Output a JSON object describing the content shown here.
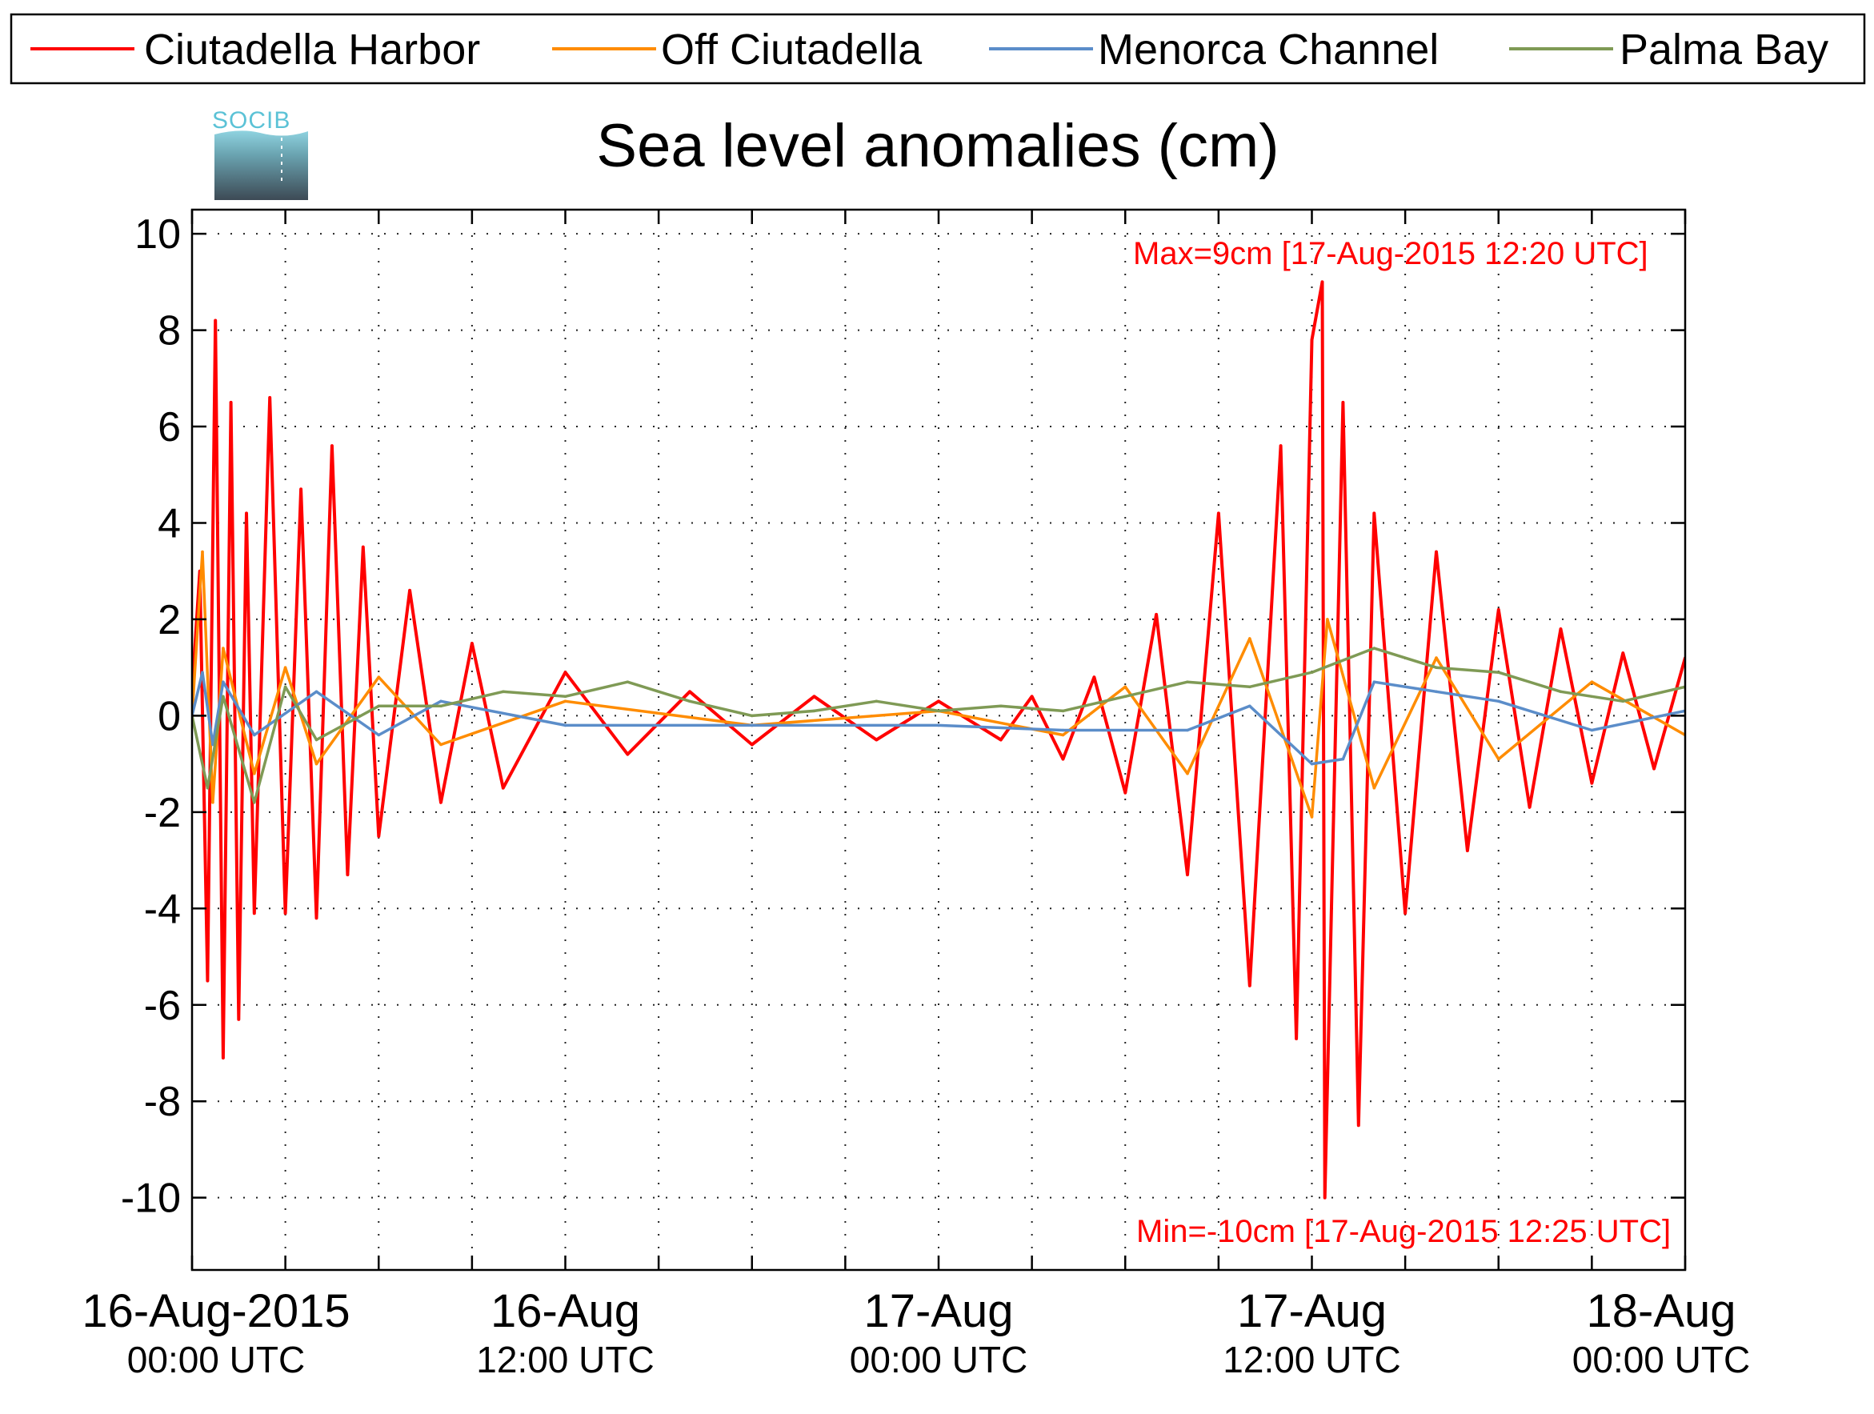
{
  "chart_data": {
    "type": "line",
    "title": "Sea level anomalies (cm)",
    "xlabel": "",
    "ylabel": "",
    "ylim": [
      -11.5,
      10.5
    ],
    "yticks": [
      -10,
      -8,
      -6,
      -4,
      -2,
      0,
      2,
      4,
      6,
      8,
      10
    ],
    "xlim": [
      "2015-08-16T00:00Z",
      "2015-08-18T00:00Z"
    ],
    "xticks": [
      {
        "line1": "16-Aug-2015",
        "line2": "00:00 UTC"
      },
      {
        "line1": "16-Aug",
        "line2": "12:00 UTC"
      },
      {
        "line1": "17-Aug",
        "line2": "00:00 UTC"
      },
      {
        "line1": "17-Aug",
        "line2": "12:00 UTC"
      },
      {
        "line1": "18-Aug",
        "line2": "00:00 UTC"
      }
    ],
    "grid": true,
    "legend_position": "top",
    "annotations": {
      "max": "Max=9cm [17-Aug-2015 12:20 UTC]",
      "min": "Min=-10cm [17-Aug-2015 12:25 UTC]"
    },
    "series": [
      {
        "name": "Ciutadella Harbor",
        "color": "#ff0000",
        "x": [
          "2015-08-16T00:00Z",
          "2015-08-16T00:15Z",
          "2015-08-16T00:30Z",
          "2015-08-16T00:45Z",
          "2015-08-16T01:00Z",
          "2015-08-16T01:15Z",
          "2015-08-16T01:30Z",
          "2015-08-16T01:45Z",
          "2015-08-16T02:00Z",
          "2015-08-16T02:30Z",
          "2015-08-16T03:00Z",
          "2015-08-16T03:30Z",
          "2015-08-16T04:00Z",
          "2015-08-16T04:30Z",
          "2015-08-16T05:00Z",
          "2015-08-16T05:30Z",
          "2015-08-16T06:00Z",
          "2015-08-16T07:00Z",
          "2015-08-16T08:00Z",
          "2015-08-16T09:00Z",
          "2015-08-16T10:00Z",
          "2015-08-16T12:00Z",
          "2015-08-16T14:00Z",
          "2015-08-16T16:00Z",
          "2015-08-16T18:00Z",
          "2015-08-16T20:00Z",
          "2015-08-16T22:00Z",
          "2015-08-17T00:00Z",
          "2015-08-17T02:00Z",
          "2015-08-17T03:00Z",
          "2015-08-17T04:00Z",
          "2015-08-17T05:00Z",
          "2015-08-17T06:00Z",
          "2015-08-17T07:00Z",
          "2015-08-17T08:00Z",
          "2015-08-17T09:00Z",
          "2015-08-17T10:00Z",
          "2015-08-17T11:00Z",
          "2015-08-17T11:30Z",
          "2015-08-17T12:00Z",
          "2015-08-17T12:20Z",
          "2015-08-17T12:25Z",
          "2015-08-17T13:00Z",
          "2015-08-17T13:30Z",
          "2015-08-17T14:00Z",
          "2015-08-17T15:00Z",
          "2015-08-17T16:00Z",
          "2015-08-17T17:00Z",
          "2015-08-17T18:00Z",
          "2015-08-17T19:00Z",
          "2015-08-17T20:00Z",
          "2015-08-17T21:00Z",
          "2015-08-17T22:00Z",
          "2015-08-17T23:00Z",
          "2015-08-18T00:00Z"
        ],
        "values": [
          0.5,
          3.0,
          -5.5,
          8.2,
          -7.1,
          6.5,
          -6.3,
          4.2,
          -4.1,
          6.6,
          -4.1,
          4.7,
          -4.2,
          5.6,
          -3.3,
          3.5,
          -2.5,
          2.6,
          -1.8,
          1.5,
          -1.5,
          0.9,
          -0.8,
          0.5,
          -0.6,
          0.4,
          -0.5,
          0.3,
          -0.5,
          0.4,
          -0.9,
          0.8,
          -1.6,
          2.1,
          -3.3,
          4.2,
          -5.6,
          5.6,
          -6.7,
          7.8,
          9.0,
          -10.0,
          6.5,
          -8.5,
          4.2,
          -4.1,
          3.4,
          -2.8,
          2.2,
          -1.9,
          1.8,
          -1.4,
          1.3,
          -1.1,
          1.2
        ]
      },
      {
        "name": "Off Ciutadella",
        "color": "#ff8c00",
        "x": [
          "2015-08-16T00:00Z",
          "2015-08-16T00:20Z",
          "2015-08-16T00:40Z",
          "2015-08-16T01:00Z",
          "2015-08-16T02:00Z",
          "2015-08-16T03:00Z",
          "2015-08-16T04:00Z",
          "2015-08-16T06:00Z",
          "2015-08-16T08:00Z",
          "2015-08-16T12:00Z",
          "2015-08-16T18:00Z",
          "2015-08-17T00:00Z",
          "2015-08-17T04:00Z",
          "2015-08-17T06:00Z",
          "2015-08-17T08:00Z",
          "2015-08-17T10:00Z",
          "2015-08-17T12:00Z",
          "2015-08-17T12:30Z",
          "2015-08-17T14:00Z",
          "2015-08-17T16:00Z",
          "2015-08-17T18:00Z",
          "2015-08-17T21:00Z",
          "2015-08-18T00:00Z"
        ],
        "values": [
          0,
          3.4,
          -1.8,
          1.4,
          -1.2,
          1.0,
          -1.0,
          0.8,
          -0.6,
          0.3,
          -0.2,
          0.1,
          -0.4,
          0.6,
          -1.2,
          1.6,
          -2.1,
          2.0,
          -1.5,
          1.2,
          -0.9,
          0.7,
          -0.4
        ]
      },
      {
        "name": "Menorca Channel",
        "color": "#5b8dc9",
        "x": [
          "2015-08-16T00:00Z",
          "2015-08-16T00:20Z",
          "2015-08-16T00:40Z",
          "2015-08-16T01:00Z",
          "2015-08-16T02:00Z",
          "2015-08-16T04:00Z",
          "2015-08-16T06:00Z",
          "2015-08-16T08:00Z",
          "2015-08-16T12:00Z",
          "2015-08-16T18:00Z",
          "2015-08-17T00:00Z",
          "2015-08-17T04:00Z",
          "2015-08-17T08:00Z",
          "2015-08-17T10:00Z",
          "2015-08-17T12:00Z",
          "2015-08-17T13:00Z",
          "2015-08-17T14:00Z",
          "2015-08-17T16:00Z",
          "2015-08-17T18:00Z",
          "2015-08-17T21:00Z",
          "2015-08-18T00:00Z"
        ],
        "values": [
          0,
          0.9,
          -0.6,
          0.7,
          -0.4,
          0.5,
          -0.4,
          0.3,
          -0.2,
          -0.2,
          -0.2,
          -0.3,
          -0.3,
          0.2,
          -1.0,
          -0.9,
          0.7,
          0.5,
          0.3,
          -0.3,
          0.1
        ]
      },
      {
        "name": "Palma Bay",
        "color": "#7f9a55",
        "x": [
          "2015-08-16T00:00Z",
          "2015-08-16T00:30Z",
          "2015-08-16T01:00Z",
          "2015-08-16T02:00Z",
          "2015-08-16T03:00Z",
          "2015-08-16T04:00Z",
          "2015-08-16T06:00Z",
          "2015-08-16T08:00Z",
          "2015-08-16T10:00Z",
          "2015-08-16T12:00Z",
          "2015-08-16T14:00Z",
          "2015-08-16T16:00Z",
          "2015-08-16T18:00Z",
          "2015-08-16T20:00Z",
          "2015-08-16T22:00Z",
          "2015-08-17T00:00Z",
          "2015-08-17T02:00Z",
          "2015-08-17T04:00Z",
          "2015-08-17T06:00Z",
          "2015-08-17T08:00Z",
          "2015-08-17T10:00Z",
          "2015-08-17T12:00Z",
          "2015-08-17T14:00Z",
          "2015-08-17T16:00Z",
          "2015-08-17T18:00Z",
          "2015-08-17T20:00Z",
          "2015-08-17T22:00Z",
          "2015-08-18T00:00Z"
        ],
        "values": [
          0,
          -1.5,
          0.4,
          -1.8,
          0.6,
          -0.5,
          0.2,
          0.2,
          0.5,
          0.4,
          0.7,
          0.3,
          0.0,
          0.1,
          0.3,
          0.1,
          0.2,
          0.1,
          0.4,
          0.7,
          0.6,
          0.9,
          1.4,
          1.0,
          0.9,
          0.5,
          0.3,
          0.6
        ]
      }
    ]
  }
}
